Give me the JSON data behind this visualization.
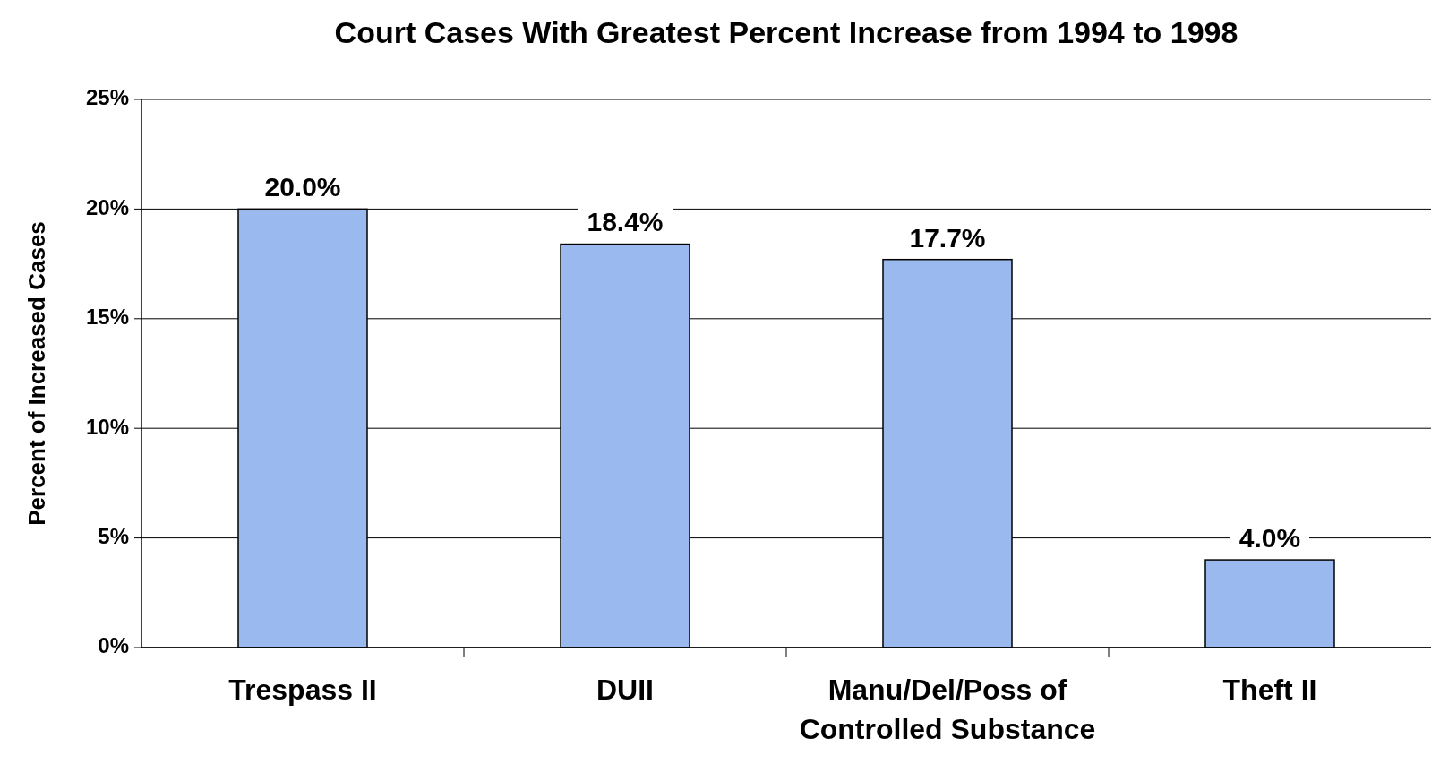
{
  "chart_data": {
    "type": "bar",
    "title": "Court Cases With Greatest Percent Increase from 1994 to 1998",
    "ylabel": "Percent of Increased Cases",
    "categories": [
      "Trespass II",
      "DUII",
      "Manu/Del/Poss of Controlled Substance",
      "Theft II"
    ],
    "values": [
      20.0,
      18.4,
      17.7,
      4.0
    ],
    "value_labels": [
      "20.0%",
      "18.4%",
      "17.7%",
      "4.0%"
    ],
    "color": "#9ab9ee",
    "ylim": [
      0,
      25
    ],
    "yticks": [
      {
        "value": 0,
        "label": "0%"
      },
      {
        "value": 5,
        "label": "5%"
      },
      {
        "value": 10,
        "label": "10%"
      },
      {
        "value": 15,
        "label": "15%"
      },
      {
        "value": 20,
        "label": "20%"
      },
      {
        "value": 25,
        "label": "25%"
      }
    ],
    "grid": "y"
  }
}
